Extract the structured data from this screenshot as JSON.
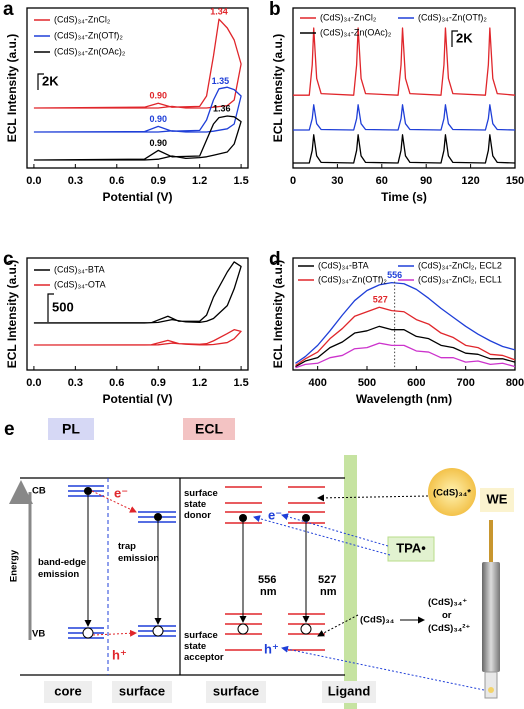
{
  "chart_data": [
    {
      "type": "line",
      "panel_label": "a",
      "x_label": "Potential (V)",
      "y_label": "ECL Intensity (a.u.)",
      "xlim": [
        -0.05,
        1.55
      ],
      "ylim": [
        0,
        20000
      ],
      "xticks": [
        {
          "value": 0,
          "label": "0.0"
        },
        0.3,
        0.6,
        0.9,
        1.2,
        1.5
      ],
      "scale_bar": {
        "value": 2000,
        "label": "2K"
      },
      "x": [
        0,
        0.8,
        0.9,
        1.0,
        1.2,
        1.25,
        1.3,
        1.34,
        1.4,
        1.45,
        1.5,
        1.45,
        1.4,
        1.3,
        1.25,
        1.2,
        1.1,
        1.0,
        0.9,
        0.8,
        0
      ],
      "series": [
        {
          "name": "(CdS)₃₄-ZnCl₂",
          "color": "#e0262b",
          "values": [
            7500,
            7600,
            8100,
            7600,
            7700,
            9000,
            14000,
            18600,
            17500,
            16000,
            13000,
            8500,
            7800,
            7600,
            7500,
            7500,
            7500,
            7700,
            7500,
            7500,
            7500
          ],
          "peak_labels": [
            {
              "value": 0.9,
              "label": "0.90"
            },
            1.34
          ]
        },
        {
          "name": "(CdS)₃₄-Zn(OTf)₂",
          "color": "#1f3fd8",
          "values": [
            4500,
            4550,
            5200,
            4600,
            4700,
            6000,
            8500,
            9900,
            10100,
            9800,
            9000,
            5500,
            4900,
            4600,
            4500,
            4500,
            4500,
            4650,
            4500,
            4500,
            4500
          ],
          "peak_labels": [
            {
              "value": 0.9,
              "label": "0.90"
            },
            1.35
          ]
        },
        {
          "name": "(CdS)₃₄-Zn(OAc)₂",
          "color": "#000000",
          "values": [
            1000,
            1100,
            2200,
            1400,
            1500,
            3500,
            5500,
            6300,
            6500,
            6400,
            5800,
            3000,
            2000,
            1600,
            1400,
            1300,
            1200,
            1500,
            1100,
            1000,
            1000
          ],
          "peak_labels": [
            {
              "value": 0.9,
              "label": "0.90"
            },
            1.36
          ]
        }
      ]
    },
    {
      "type": "line",
      "panel_label": "b",
      "x_label": "Time (s)",
      "y_label": "ECL Intensity (a.u.)",
      "xlim": [
        0,
        150
      ],
      "ylim": [
        0,
        20000
      ],
      "xticks": [
        0,
        30,
        60,
        90,
        120,
        150
      ],
      "scale_bar": {
        "value": 2000,
        "label": "2K"
      },
      "x": [
        0,
        11,
        13,
        14,
        16,
        19,
        41,
        43,
        44,
        46,
        49,
        71,
        73,
        74,
        76,
        79,
        100,
        102,
        103,
        105,
        108,
        130,
        132,
        133,
        135,
        138,
        150
      ],
      "series": [
        {
          "name": "(CdS)₃₄-ZnCl₂",
          "color": "#e0262b",
          "values": [
            9100,
            9100,
            12900,
            17500,
            11200,
            9300,
            9100,
            12900,
            17500,
            11200,
            9300,
            9100,
            12900,
            17500,
            11200,
            9300,
            9100,
            12900,
            17500,
            11200,
            9300,
            9100,
            12900,
            17500,
            11200,
            9300,
            9100
          ]
        },
        {
          "name": "(CdS)₃₄-Zn(OTf)₂",
          "color": "#1f3fd8",
          "values": [
            4750,
            4750,
            6170,
            7900,
            5540,
            4810,
            4750,
            6170,
            7900,
            5540,
            4810,
            4750,
            6170,
            7900,
            5540,
            4810,
            4750,
            6170,
            7900,
            5540,
            4810,
            4750,
            6170,
            7900,
            5540,
            4810,
            4750
          ]
        },
        {
          "name": "(CdS)₃₄-Zn(OAc)₂",
          "color": "#000000",
          "values": [
            625,
            625,
            2210,
            4150,
            1510,
            700,
            625,
            2210,
            4150,
            1510,
            700,
            625,
            2210,
            4150,
            1510,
            700,
            625,
            2210,
            4150,
            1510,
            700,
            625,
            2210,
            4150,
            1510,
            700,
            625
          ]
        }
      ]
    },
    {
      "type": "line",
      "panel_label": "c",
      "x_label": "Potential (V)",
      "y_label": "ECL Intensity (a.u.)",
      "xlim": [
        -0.05,
        1.55
      ],
      "ylim": [
        0,
        2000
      ],
      "xticks": [
        {
          "value": 0,
          "label": "0.0"
        },
        0.3,
        0.6,
        0.9,
        1.2,
        1.5
      ],
      "scale_bar": 500,
      "x": [
        0,
        0.85,
        0.97,
        1.05,
        1.2,
        1.25,
        1.3,
        1.4,
        1.45,
        1.5,
        1.45,
        1.4,
        1.3,
        1.25,
        1.2,
        1.1,
        1.0,
        0.9,
        0.8,
        0
      ],
      "series": [
        {
          "name": "(CdS)₃₄-BTA",
          "color": "#000000",
          "values": [
            840,
            845,
            960,
            870,
            870,
            980,
            1300,
            1750,
            1930,
            1850,
            1450,
            1150,
            920,
            870,
            850,
            860,
            900,
            850,
            840,
            840
          ]
        },
        {
          "name": "(CdS)₃₄-OTA",
          "color": "#e0262b",
          "values": [
            446,
            450,
            530,
            470,
            460,
            470,
            520,
            650,
            720,
            690,
            560,
            490,
            455,
            450,
            450,
            460,
            480,
            450,
            446,
            446
          ]
        }
      ]
    },
    {
      "type": "line",
      "panel_label": "d",
      "x_label": "Wavelength (nm)",
      "y_label": "ECL Intensity (a.u.)",
      "xlim": [
        350,
        800
      ],
      "ylim": [
        0,
        100
      ],
      "xticks": [
        400,
        500,
        600,
        700,
        800
      ],
      "x": [
        355,
        375,
        400,
        425,
        450,
        475,
        500,
        525,
        550,
        575,
        600,
        625,
        650,
        675,
        700,
        725,
        750,
        775,
        800
      ],
      "series": [
        {
          "name": "(CdS)₃₄-BTA",
          "color": "#000000",
          "values": [
            3,
            8,
            11,
            20,
            25,
            33,
            35,
            39,
            36,
            36,
            30,
            28,
            22,
            20,
            15,
            14,
            10,
            10,
            7
          ]
        },
        {
          "name": "(CdS)₃₄-ZnCl₂, ECL2",
          "color": "#1f3fd8",
          "values": [
            6,
            12,
            22,
            35,
            49,
            62,
            71,
            76,
            78,
            77,
            72,
            64,
            55,
            47,
            39,
            32,
            26,
            21,
            18
          ],
          "peak_labels": [
            556
          ],
          "peak_line": true
        },
        {
          "name": "(CdS)₃₄-Zn(OTf)₂",
          "color": "#e0262b",
          "values": [
            4,
            10,
            16,
            28,
            37,
            48,
            52,
            56,
            53,
            52,
            45,
            41,
            33,
            29,
            22,
            20,
            14,
            13,
            9
          ],
          "peak_labels": [
            527
          ]
        },
        {
          "name": "(CdS)₃₄-ZnCl₂, ECL1",
          "color": "#cc33cc",
          "values": [
            2,
            5,
            6,
            11,
            13,
            19,
            20,
            24,
            22,
            22,
            17,
            16,
            11,
            11,
            7,
            8,
            5,
            6,
            3
          ]
        }
      ]
    }
  ],
  "diagram": {
    "panel_label": "e",
    "pl": "PL",
    "ecl": "ECL",
    "cb": "CB",
    "vb": "VB",
    "electron_core": "e⁻",
    "hole_core": "h⁺",
    "band_edge_emission": [
      "band-edge",
      "emission"
    ],
    "trap_emission": [
      "trap",
      "emission"
    ],
    "donor": [
      "surface",
      "state",
      "donor"
    ],
    "acceptor": [
      "surface",
      "state",
      "acceptor"
    ],
    "emission_556": [
      "556",
      "nm"
    ],
    "emission_527": [
      "527",
      "nm"
    ],
    "electron_surface": "e⁻",
    "hole_surface": "h⁺",
    "tpa": "TPA•",
    "excited": "(CdS)₃₄*",
    "we": "WE",
    "cds": "(CdS)₃₄",
    "oxidized": [
      "(CdS)₃₄⁺",
      "or",
      "(CdS)₃₄²⁺"
    ],
    "energy": "Energy",
    "bottom": [
      "core",
      "surface",
      "surface",
      "Ligand"
    ]
  }
}
